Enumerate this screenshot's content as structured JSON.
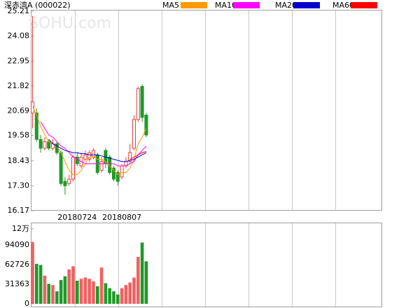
{
  "chart_data": [
    {
      "type": "candlestick",
      "title": "深赤湾A (000022)",
      "watermark": "SOHU.com",
      "categories": [
        null,
        null,
        null,
        null,
        null,
        null,
        null,
        null,
        null,
        null,
        null,
        "20180724",
        null,
        null,
        null,
        null,
        null,
        null,
        null,
        null,
        null,
        null,
        "20180807",
        null,
        null,
        null,
        null,
        null,
        null
      ],
      "open": [
        20.6,
        20.6,
        19.4,
        19.0,
        19.3,
        19.0,
        19.2,
        18.8,
        17.5,
        17.4,
        17.6,
        18.6,
        18.2,
        18.5,
        18.5,
        18.6,
        18.7,
        18.0,
        18.9,
        18.6,
        18.1,
        17.9,
        17.7,
        18.2,
        18.4,
        19.0,
        20.3,
        21.8,
        20.5
      ],
      "high": [
        25.0,
        20.8,
        19.6,
        19.5,
        19.4,
        19.4,
        19.3,
        18.9,
        17.7,
        17.8,
        18.7,
        18.8,
        18.8,
        18.9,
        18.9,
        19.0,
        18.8,
        18.6,
        19.0,
        18.7,
        18.2,
        18.0,
        18.3,
        18.6,
        19.2,
        20.5,
        21.8,
        21.9,
        20.6
      ],
      "low": [
        19.9,
        19.3,
        18.8,
        18.9,
        18.9,
        18.9,
        18.7,
        17.3,
        16.9,
        17.3,
        17.5,
        18.2,
        18.1,
        18.4,
        18.4,
        18.5,
        17.8,
        17.9,
        18.1,
        17.8,
        17.5,
        17.3,
        17.6,
        18.1,
        18.3,
        18.9,
        20.2,
        20.2,
        19.5
      ],
      "close": [
        21.1,
        19.4,
        19.0,
        19.3,
        19.0,
        19.2,
        18.8,
        17.4,
        17.3,
        17.6,
        18.6,
        18.3,
        18.6,
        18.7,
        18.8,
        18.9,
        17.9,
        18.4,
        18.3,
        17.9,
        17.6,
        17.5,
        18.2,
        18.4,
        18.8,
        20.3,
        21.7,
        20.4,
        19.6
      ],
      "up_color": "#e8403c",
      "down_color": "#1e9a28",
      "series": [
        {
          "name": "MA5",
          "color": "#ff9900",
          "values": [
            20.9,
            20.5,
            20.0,
            19.6,
            19.3,
            19.2,
            19.1,
            18.8,
            18.4,
            18.0,
            17.8,
            17.8,
            18.0,
            18.3,
            18.6,
            18.6,
            18.5,
            18.5,
            18.4,
            18.2,
            18.0,
            17.8,
            17.9,
            17.9,
            18.1,
            18.5,
            19.2,
            19.5,
            19.9
          ]
        },
        {
          "name": "MA10",
          "color": "#ff00ff",
          "values": [
            null,
            null,
            20.2,
            19.9,
            19.6,
            19.5,
            19.3,
            19.1,
            19.0,
            18.8,
            18.6,
            18.5,
            18.4,
            18.3,
            18.3,
            18.3,
            18.3,
            18.3,
            18.3,
            18.3,
            18.3,
            18.2,
            18.2,
            18.2,
            18.3,
            18.4,
            18.7,
            18.9,
            19.1
          ]
        },
        {
          "name": "MA20",
          "color": "#0000cc",
          "values": [
            null,
            null,
            null,
            null,
            19.4,
            19.2,
            19.1,
            19.0,
            18.9,
            18.85,
            18.8,
            18.8,
            18.75,
            18.75,
            18.7,
            18.7,
            18.7,
            18.65,
            18.6,
            18.55,
            18.5,
            18.45,
            18.4,
            18.4,
            18.45,
            18.5,
            18.6,
            18.7,
            18.8
          ]
        },
        {
          "name": "MA60",
          "color": "#ff0000",
          "values": [
            null,
            null,
            null,
            null,
            null,
            null,
            null,
            null,
            null,
            null,
            null,
            null,
            null,
            null,
            null,
            null,
            null,
            null,
            null,
            null,
            null,
            null,
            null,
            null,
            18.5,
            18.6,
            18.7,
            18.8,
            18.85
          ]
        }
      ],
      "ylim": [
        16.17,
        25.21
      ],
      "yticks": [
        16.17,
        {
          "value": 17.3,
          "label": "17.30"
        },
        18.43,
        19.58,
        20.69,
        21.82,
        22.95,
        24.08,
        25.21
      ]
    },
    {
      "type": "bar",
      "values": [
        99000,
        64000,
        62000,
        45000,
        32000,
        30000,
        20000,
        38000,
        44000,
        55000,
        60000,
        37000,
        40000,
        42000,
        40000,
        36000,
        28000,
        58000,
        33000,
        25000,
        20000,
        15000,
        25000,
        30000,
        34000,
        42000,
        75000,
        98000,
        68000
      ],
      "ylim": [
        0,
        120000
      ],
      "yticks": [
        0,
        31363,
        62726,
        94090,
        {
          "value": 120000,
          "label": "12万"
        }
      ]
    }
  ]
}
